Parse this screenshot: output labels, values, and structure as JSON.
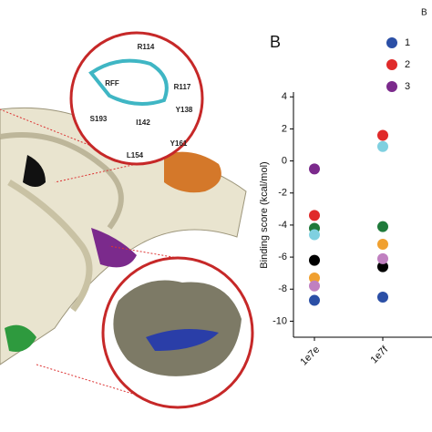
{
  "chart_data": {
    "type": "scatter",
    "ylabel": "Binding score (kcal/mol)",
    "categories": [
      "1e7e",
      "1e7f"
    ],
    "ylim": [
      -11,
      4.3
    ],
    "yticks": [
      4,
      2,
      0,
      -2,
      -4,
      -6,
      -8,
      -10
    ],
    "series": [
      {
        "name": "1",
        "color": "#2b4fa6",
        "values": [
          -8.7,
          -8.5
        ]
      },
      {
        "name": "2",
        "color": "#e02a2a",
        "values": [
          -3.4,
          1.6
        ]
      },
      {
        "name": "3",
        "color": "#7b2a8c",
        "values": [
          -0.5,
          null
        ]
      },
      {
        "color": "#1f7a3a",
        "values": [
          -4.2,
          -4.1
        ]
      },
      {
        "color": "#7fd0e0",
        "values": [
          -4.6,
          0.9
        ]
      },
      {
        "color": "#000000",
        "values": [
          -6.2,
          -6.6
        ]
      },
      {
        "color": "#f0a030",
        "values": [
          -7.3,
          -5.2
        ]
      },
      {
        "color": "#c080c0",
        "values": [
          -7.8,
          -6.1
        ]
      }
    ]
  },
  "panel_label": "B",
  "corner_label": "B",
  "structure_labels": [
    "R114",
    "RFF",
    "R117",
    "S193",
    "I142",
    "Y138",
    "L154",
    "Y161"
  ]
}
